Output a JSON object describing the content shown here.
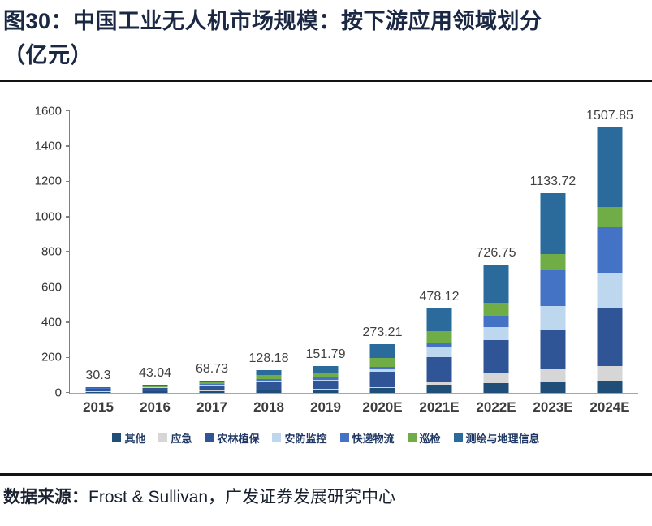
{
  "title": {
    "line1": "图30：中国工业无人机市场规模：按下游应用领域划分",
    "line2": "（亿元）"
  },
  "source": {
    "prefix": "数据来源：",
    "text": "Frost & Sullivan，广发证券发展研究中心"
  },
  "chart_data": {
    "type": "bar",
    "stacked": true,
    "grid": false,
    "legend_position": "bottom",
    "title": "中国工业无人机市场规模：按下游应用领域划分（亿元）",
    "xlabel": "",
    "ylabel": "",
    "ylim": [
      0,
      1600
    ],
    "yticks": [
      0,
      200,
      400,
      600,
      800,
      1000,
      1200,
      1400,
      1600
    ],
    "categories": [
      "2015",
      "2016",
      "2017",
      "2018",
      "2019",
      "2020E",
      "2021E",
      "2022E",
      "2023E",
      "2024E"
    ],
    "total_labels": [
      "30.3",
      "43.04",
      "68.73",
      "128.18",
      "151.79",
      "273.21",
      "478.12",
      "726.75",
      "1133.72",
      "1507.85"
    ],
    "series": [
      {
        "name": "其他",
        "color": "#1F4E79",
        "values": [
          5,
          7,
          10,
          16,
          18,
          25,
          46,
          56,
          64,
          70
        ]
      },
      {
        "name": "应急",
        "color": "#D6D6D6",
        "values": [
          1,
          1,
          2,
          3,
          3,
          5,
          18,
          56,
          69,
          80
        ]
      },
      {
        "name": "农林植保",
        "color": "#2F5597",
        "values": [
          15,
          20,
          28,
          42,
          45,
          88,
          138,
          187,
          222,
          327
        ]
      },
      {
        "name": "安防监控",
        "color": "#BDD7EE",
        "values": [
          1.5,
          2,
          4,
          7,
          8,
          19,
          55,
          75,
          138,
          206
        ]
      },
      {
        "name": "快递物流",
        "color": "#4472C4",
        "values": [
          2,
          3,
          5,
          10,
          12,
          8,
          23,
          65,
          204,
          257
        ]
      },
      {
        "name": "巡检",
        "color": "#70AD47",
        "values": [
          2.5,
          4,
          8,
          22,
          30,
          50,
          69,
          70,
          88,
          117
        ]
      },
      {
        "name": "测绘与地理信息",
        "color": "#2A6B9C",
        "values": [
          3.3,
          6.04,
          11.73,
          28.18,
          35.79,
          78.21,
          129.12,
          217.75,
          348.72,
          450.85
        ]
      }
    ]
  }
}
